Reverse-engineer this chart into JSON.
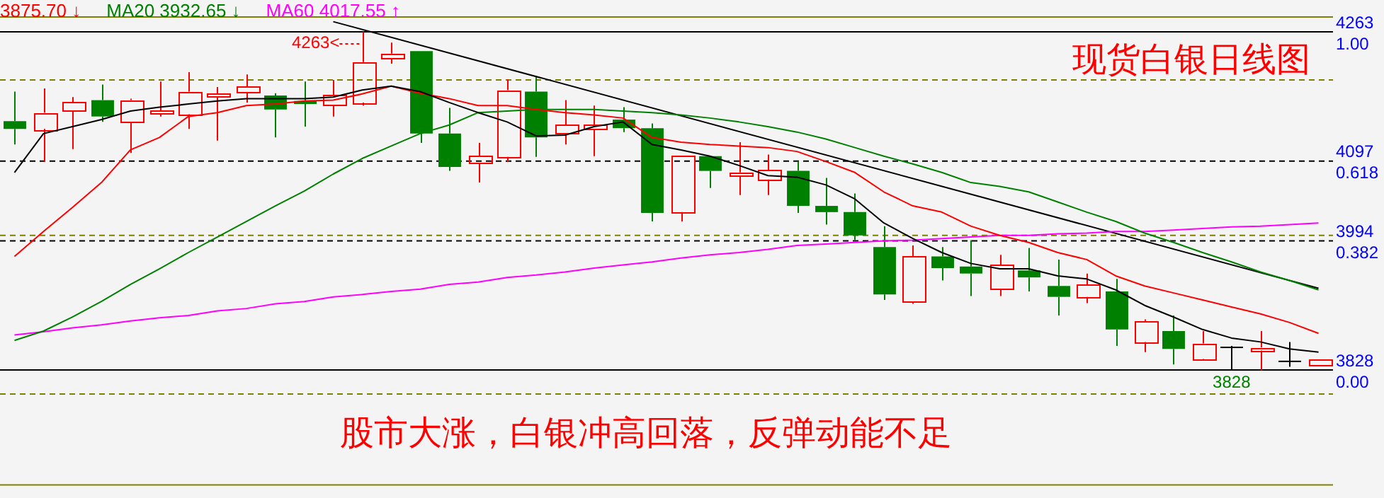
{
  "chart_data": {
    "type": "candlestick",
    "title": "现货白银日线图",
    "subtitle": "股市大涨，白银冲高回落，反弹动能不足",
    "categories": [
      null,
      null,
      null,
      null,
      null,
      null,
      null,
      null,
      null,
      null,
      null,
      null,
      null,
      null,
      null,
      null,
      null,
      null,
      null,
      null,
      null,
      null,
      null,
      null,
      null,
      null,
      null,
      null,
      null,
      null,
      null,
      null,
      null,
      null,
      null,
      null,
      null,
      null,
      null,
      null,
      null,
      null,
      null,
      null,
      null,
      null
    ],
    "ohlc": [
      [
        4148,
        4186,
        4118,
        4138
      ],
      [
        4138,
        4190,
        4096,
        4159
      ],
      [
        4161,
        4179,
        4112,
        4172
      ],
      [
        4175,
        4195,
        4147,
        4154
      ],
      [
        4147,
        4177,
        4107,
        4175
      ],
      [
        4157,
        4199,
        4154,
        4161
      ],
      [
        4157,
        4211,
        4138,
        4186
      ],
      [
        4179,
        4192,
        4123,
        4183
      ],
      [
        4184,
        4208,
        4172,
        4192
      ],
      [
        4181,
        4184,
        4127,
        4163
      ],
      [
        4174,
        4199,
        4141,
        4170
      ],
      [
        4168,
        4201,
        4154,
        4181
      ],
      [
        4172,
        4263,
        4168,
        4224
      ],
      [
        4229,
        4249,
        4222,
        4235
      ],
      [
        4238,
        4238,
        4120,
        4132
      ],
      [
        4132,
        4165,
        4084,
        4089
      ],
      [
        4093,
        4120,
        4069,
        4103
      ],
      [
        4102,
        4202,
        4096,
        4188
      ],
      [
        4186,
        4206,
        4102,
        4127
      ],
      [
        4132,
        4175,
        4118,
        4143
      ],
      [
        4138,
        4168,
        4103,
        4143
      ],
      [
        4150,
        4166,
        4134,
        4139
      ],
      [
        4139,
        4145,
        4019,
        4030
      ],
      [
        4031,
        4103,
        4019,
        4103
      ],
      [
        4103,
        4103,
        4062,
        4084
      ],
      [
        4078,
        4121,
        4053,
        4082
      ],
      [
        4073,
        4105,
        4053,
        4085
      ],
      [
        4084,
        4096,
        4030,
        4039
      ],
      [
        4039,
        4075,
        4015,
        4031
      ],
      [
        4031,
        4055,
        3995,
        4001
      ],
      [
        3986,
        4013,
        3918,
        3925
      ],
      [
        3916,
        3988,
        3913,
        3974
      ],
      [
        3974,
        3986,
        3943,
        3959
      ],
      [
        3961,
        3995,
        3923,
        3952
      ],
      [
        3932,
        3976,
        3923,
        3963
      ],
      [
        3956,
        3985,
        3929,
        3947
      ],
      [
        3936,
        3970,
        3898,
        3922
      ],
      [
        3922,
        3952,
        3914,
        3938
      ],
      [
        3929,
        3945,
        3859,
        3880
      ],
      [
        3864,
        3893,
        3851,
        3891
      ],
      [
        3878,
        3898,
        3835,
        3855
      ],
      [
        3842,
        3878,
        3841,
        3862
      ],
      [
        3857,
        3859,
        3828,
        3857
      ],
      [
        3853,
        3878,
        3828,
        3857
      ],
      [
        3839,
        3864,
        3832,
        3839
      ],
      [
        3835,
        3842,
        3835,
        3842
      ]
    ],
    "colors": [
      "#008000",
      "#ff0000",
      "#ff0000",
      "#008000",
      "#ff0000",
      "#ff0000",
      "#ff0000",
      "#ff0000",
      "#ff0000",
      "#008000",
      "#008000",
      "#ff0000",
      "#ff0000",
      "#ff0000",
      "#008000",
      "#008000",
      "#ff0000",
      "#ff0000",
      "#008000",
      "#ff0000",
      "#ff0000",
      "#008000",
      "#008000",
      "#ff0000",
      "#008000",
      "#ff0000",
      "#ff0000",
      "#008000",
      "#008000",
      "#008000",
      "#008000",
      "#ff0000",
      "#008000",
      "#008000",
      "#ff0000",
      "#008000",
      "#008000",
      "#ff0000",
      "#008000",
      "#ff0000",
      "#008000",
      "#ff0000",
      "#000000",
      "#ff0000",
      "#000000",
      "#ff0000"
    ],
    "series": [
      {
        "type": "line",
        "color": "#000000",
        "values": [
          4082,
          4132,
          4141,
          4150,
          4161,
          4166,
          4170,
          4174,
          4177,
          4177,
          4177,
          4179,
          4188,
          4193,
          4186,
          4172,
          4159,
          4147,
          4129,
          4130,
          4141,
          4147,
          4118,
          4111,
          4103,
          4091,
          4078,
          4076,
          4066,
          4048,
          4017,
          3997,
          3979,
          3965,
          3958,
          3958,
          3949,
          3945,
          3931,
          3911,
          3896,
          3880,
          3869,
          3864,
          3855,
          3851
        ]
      },
      {
        "type": "line",
        "name": "3875.70 ↓",
        "color": "#ff0000",
        "values": [
          3974,
          4006,
          4037,
          4069,
          4111,
          4127,
          4154,
          4159,
          4168,
          4170,
          4174,
          4175,
          4183,
          4193,
          4184,
          4177,
          4168,
          4168,
          4163,
          4159,
          4156,
          4152,
          4127,
          4121,
          4118,
          4116,
          4114,
          4109,
          4096,
          4082,
          4057,
          4039,
          4031,
          4013,
          4001,
          3992,
          3979,
          3970,
          3949,
          3936,
          3927,
          3918,
          3909,
          3900,
          3889,
          3875
        ]
      },
      {
        "type": "line",
        "name": "MA20 3932.65 ↓",
        "color": "#008000",
        "values": [
          3866,
          3878,
          3896,
          3916,
          3938,
          3958,
          3979,
          3999,
          4019,
          4039,
          4058,
          4080,
          4100,
          4116,
          4132,
          4143,
          4159,
          4161,
          4163,
          4163,
          4163,
          4161,
          4159,
          4156,
          4152,
          4147,
          4141,
          4134,
          4125,
          4114,
          4103,
          4093,
          4082,
          4069,
          4064,
          4057,
          4044,
          4031,
          4019,
          4004,
          3992,
          3979,
          3967,
          3954,
          3943,
          3931
        ]
      },
      {
        "type": "line",
        "name": "MA60 4017.55 ↑",
        "color": "#ff00ff",
        "values": [
          3873,
          3877,
          3882,
          3886,
          3891,
          3895,
          3898,
          3904,
          3907,
          3913,
          3916,
          3922,
          3925,
          3929,
          3932,
          3938,
          3941,
          3947,
          3950,
          3954,
          3959,
          3963,
          3967,
          3972,
          3976,
          3979,
          3983,
          3988,
          3990,
          3992,
          3994,
          3995,
          3997,
          3999,
          4001,
          4001,
          4003,
          4004,
          4006,
          4006,
          4008,
          4010,
          4012,
          4013,
          4015,
          4017
        ]
      },
      {
        "type": "line",
        "color": "#000000",
        "values": [
          null,
          null,
          null,
          null,
          null,
          null,
          null,
          null,
          null,
          null,
          null,
          4276,
          null,
          null,
          null,
          null,
          null,
          null,
          null,
          null,
          null,
          null,
          null,
          null,
          null,
          null,
          null,
          null,
          null,
          null,
          null,
          null,
          null,
          null,
          null,
          null,
          null,
          null,
          null,
          null,
          null,
          null,
          null,
          null,
          null,
          3933
        ]
      }
    ],
    "ylim": [
      3680,
      4282
    ],
    "yticks": [
      4263,
      4097,
      3994,
      3828
    ],
    "y2lim": [
      -0.34,
      1.044
    ],
    "tick_labels": "y",
    "ref_lines": [
      {
        "axis": "y2",
        "value": 1,
        "label": "1.00",
        "color": "#000000"
      },
      {
        "axis": "y2",
        "value": 0.618,
        "label": "0.618",
        "color": "#000000",
        "line_style": "dashed"
      },
      {
        "axis": "y2",
        "value": 0.382,
        "label": "0.382",
        "color": "#000000",
        "line_style": "dashed"
      },
      {
        "axis": "y2",
        "value": 0,
        "label": "0.00",
        "color": "#000000"
      },
      {
        "axis": "y",
        "value": 4201,
        "color": "#808000",
        "line_style": "dashed"
      },
      {
        "axis": "y",
        "value": 4001,
        "color": "#808000",
        "line_style": "dashed"
      },
      {
        "axis": "y",
        "value": 3797,
        "color": "#808000",
        "line_style": "dashed"
      }
    ],
    "annotations": [
      {
        "text": "4263<",
        "y": 4263
      },
      {
        "text": "3828",
        "y": 3828
      }
    ],
    "legend": "top left",
    "marker": "none",
    "line_style": "solid",
    "grid": false
  }
}
